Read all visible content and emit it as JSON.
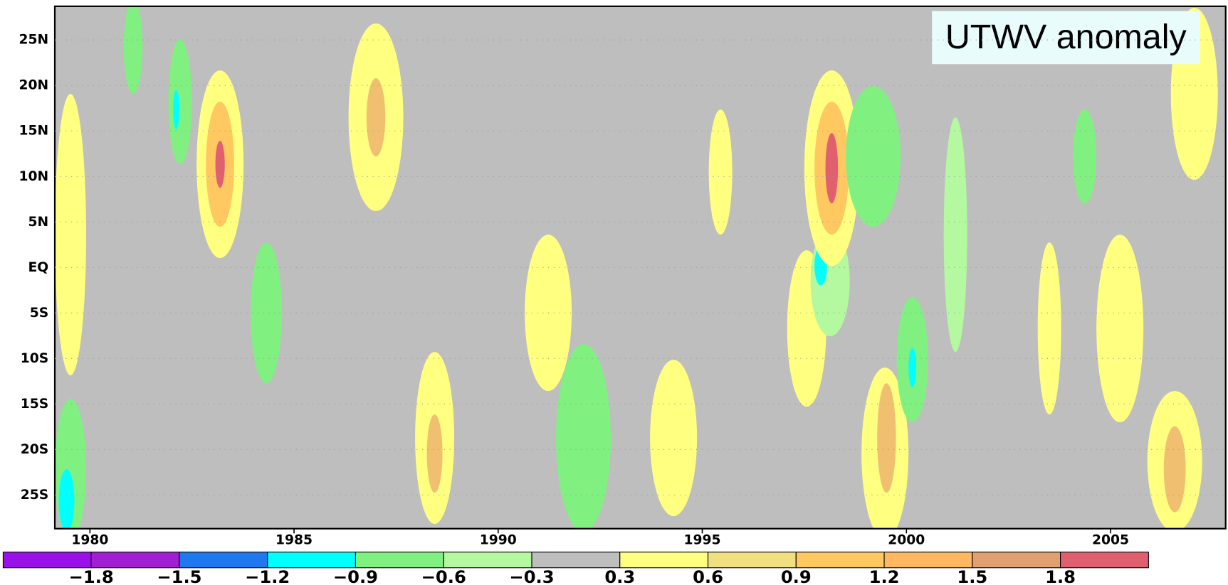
{
  "chart_data": {
    "type": "hovmoller",
    "title": "UTWV anomaly",
    "xlim": [
      1979.14,
      2007.82
    ],
    "xticks": [
      1980,
      1985,
      1990,
      1995,
      2000,
      2005
    ],
    "ylim": [
      -28.7,
      28.7
    ],
    "yticks": [
      {
        "value": 25,
        "label": "25N"
      },
      {
        "value": 20,
        "label": "20N"
      },
      {
        "value": 15,
        "label": "15N"
      },
      {
        "value": 10,
        "label": "10N"
      },
      {
        "value": 5,
        "label": "5N"
      },
      {
        "value": 0,
        "label": "EQ"
      },
      {
        "value": -5,
        "label": "5S"
      },
      {
        "value": -10,
        "label": "10S"
      },
      {
        "value": -15,
        "label": "15S"
      },
      {
        "value": -20,
        "label": "20S"
      },
      {
        "value": -25,
        "label": "25S"
      }
    ],
    "colorbar": {
      "colors": [
        "#9a10e8",
        "#a21ed2",
        "#1e78f0",
        "#00ffff",
        "#80f080",
        "#b4f8a0",
        "#bebebe",
        "#ffff80",
        "#f0e080",
        "#ffc860",
        "#ffb860",
        "#e0a070",
        "#e06070"
      ],
      "levels": [
        {
          "value": -1.8,
          "label": "−1.8"
        },
        {
          "value": -1.5,
          "label": "−1.5"
        },
        {
          "value": -1.2,
          "label": "−1.2"
        },
        {
          "value": -0.9,
          "label": "−0.9"
        },
        {
          "value": -0.6,
          "label": "−0.6"
        },
        {
          "value": -0.3,
          "label": "−0.3"
        },
        0.3,
        0.6,
        0.9,
        1.2,
        1.5,
        1.8
      ]
    }
  }
}
